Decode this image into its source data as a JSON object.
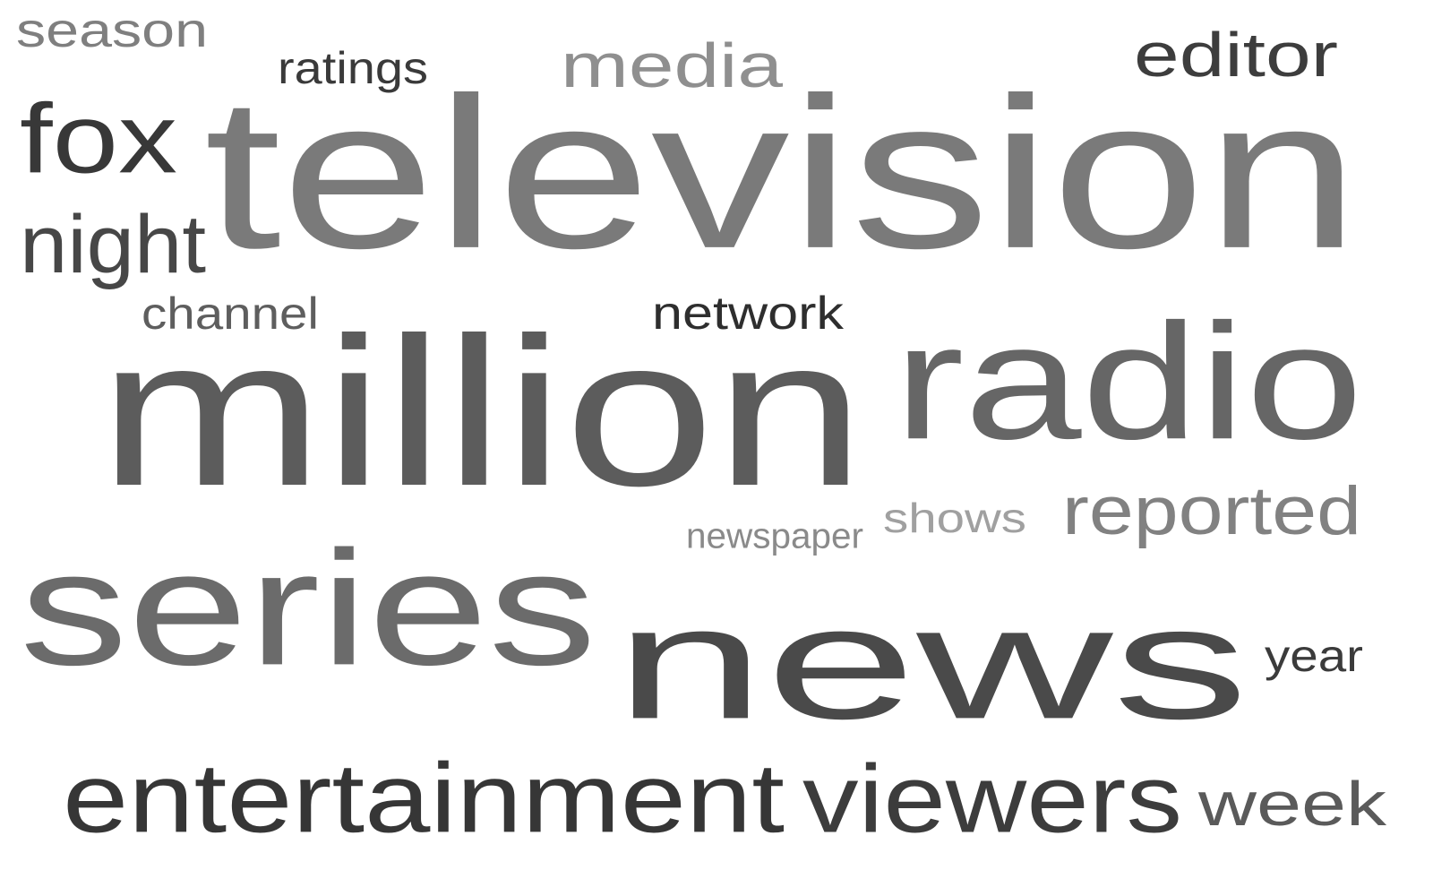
{
  "word_cloud": {
    "words": [
      {
        "text": "season",
        "color": "#7f7f7f"
      },
      {
        "text": "ratings",
        "color": "#3a3a3a"
      },
      {
        "text": "media",
        "color": "#8f8f8f"
      },
      {
        "text": "editor",
        "color": "#3d3d3d"
      },
      {
        "text": "fox",
        "color": "#383838"
      },
      {
        "text": "television",
        "color": "#7a7a7a"
      },
      {
        "text": "night",
        "color": "#474747"
      },
      {
        "text": "channel",
        "color": "#5e5e5e"
      },
      {
        "text": "network",
        "color": "#2e2e2e"
      },
      {
        "text": "million",
        "color": "#5c5c5c"
      },
      {
        "text": "radio",
        "color": "#666666"
      },
      {
        "text": "newspaper",
        "color": "#8a8a8a"
      },
      {
        "text": "shows",
        "color": "#a0a0a0"
      },
      {
        "text": "reported",
        "color": "#818181"
      },
      {
        "text": "series",
        "color": "#6b6b6b"
      },
      {
        "text": "news",
        "color": "#4a4a4a"
      },
      {
        "text": "year",
        "color": "#3b3b3b"
      },
      {
        "text": "entertainment",
        "color": "#363636"
      },
      {
        "text": "viewers",
        "color": "#3c3c3c"
      },
      {
        "text": "week",
        "color": "#5a5a5a"
      }
    ]
  }
}
